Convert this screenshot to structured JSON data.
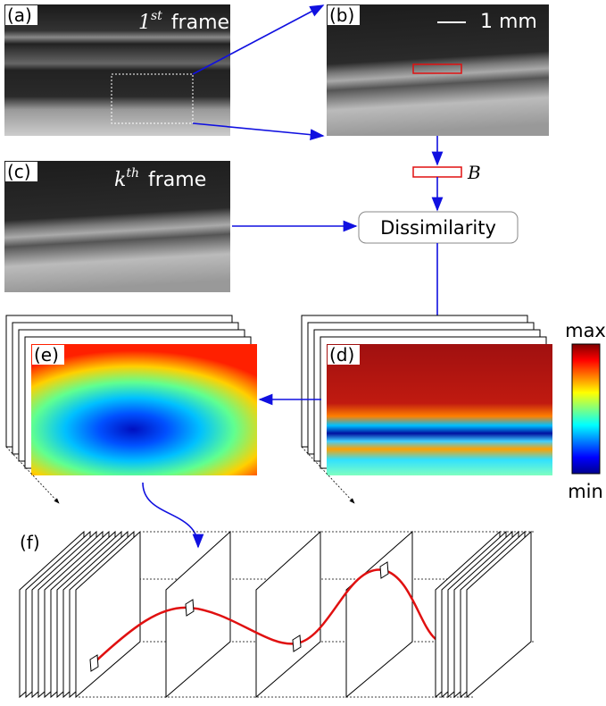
{
  "panels": {
    "a": {
      "label": "(a)",
      "title_base": "1",
      "title_sup": "st",
      "title_rest": "frame"
    },
    "b": {
      "label": "(b)",
      "scale": "1 mm"
    },
    "c": {
      "label": "(c)",
      "title_base": "k",
      "title_sup": "th",
      "title_rest": "frame"
    },
    "d": {
      "label": "(d)"
    },
    "e": {
      "label": "(e)"
    },
    "f": {
      "label": "(f)"
    }
  },
  "block_label": "B",
  "node": "Dissimilarity",
  "colorbar": {
    "max": "max",
    "min": "min"
  }
}
